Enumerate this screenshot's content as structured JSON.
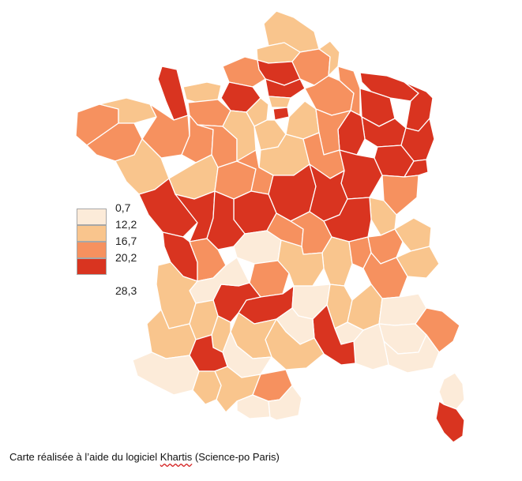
{
  "colors": {
    "class1": "#fcebd9",
    "class2": "#f9c58d",
    "class3": "#f6915f",
    "class4": "#d93420",
    "border": "#ffffff"
  },
  "legend": {
    "breaks": [
      "0,7",
      "12,2",
      "16,7",
      "20,2",
      "28,3"
    ]
  },
  "caption": {
    "before": "Carte réalisée à l’aide du logiciel ",
    "software": "Khartis",
    "after": " (Science-po Paris)"
  }
}
